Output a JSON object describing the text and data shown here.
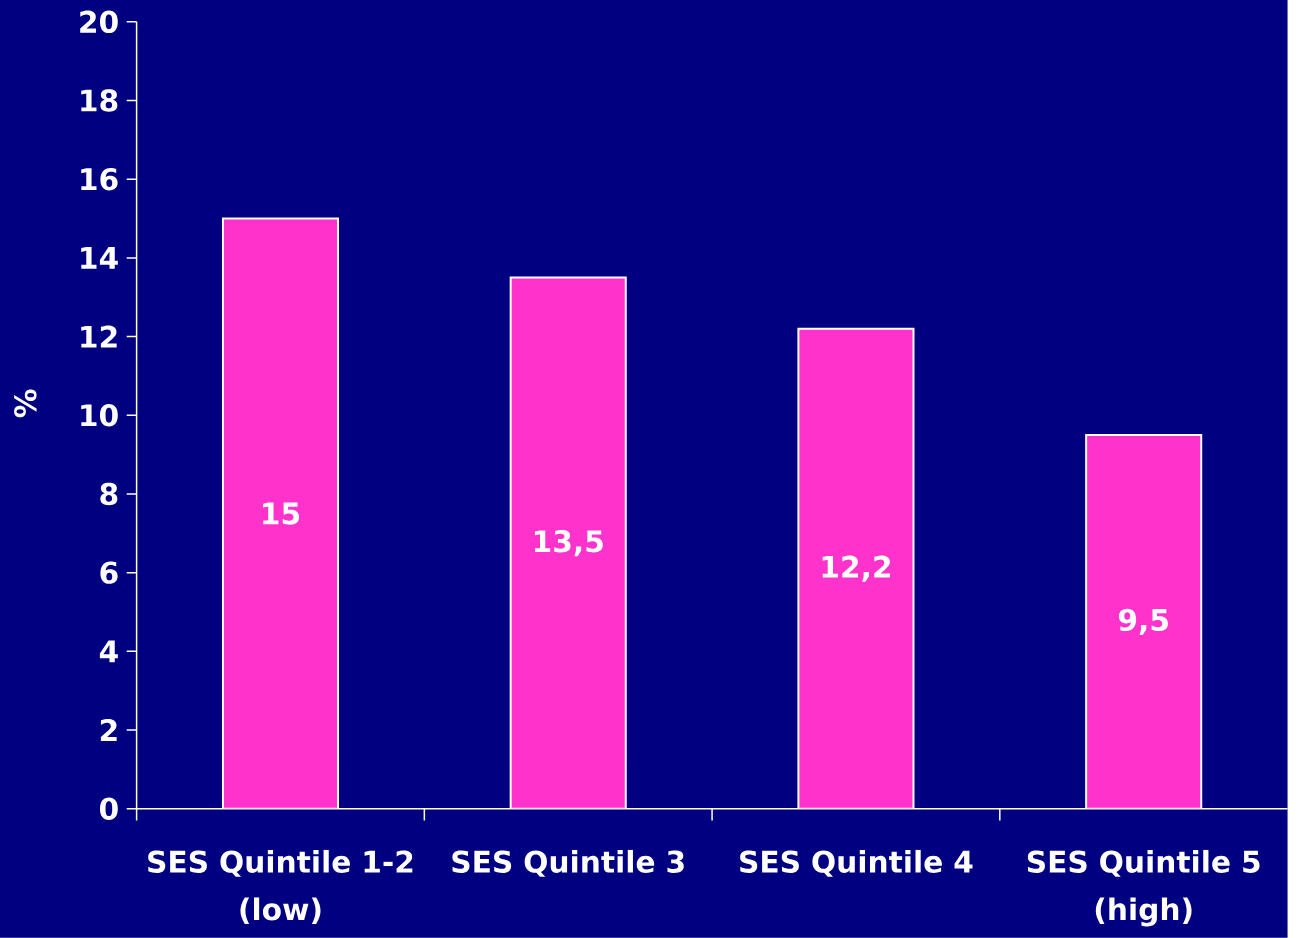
{
  "chart_data": {
    "type": "bar",
    "categories": [
      "SES Quintile 1-2 (low)",
      "SES Quintile 3",
      "SES Quintile 4",
      "SES Quintile 5 (high)"
    ],
    "values": [
      15,
      13.5,
      12.2,
      9.5
    ],
    "value_labels": [
      "15",
      "13,5",
      "12,2",
      "9,5"
    ],
    "color": "#ff33cc",
    "ylabel": "%",
    "ylim": [
      0,
      20
    ],
    "yticks": [
      0,
      2,
      4,
      6,
      8,
      10,
      12,
      14,
      16,
      18,
      20
    ]
  }
}
